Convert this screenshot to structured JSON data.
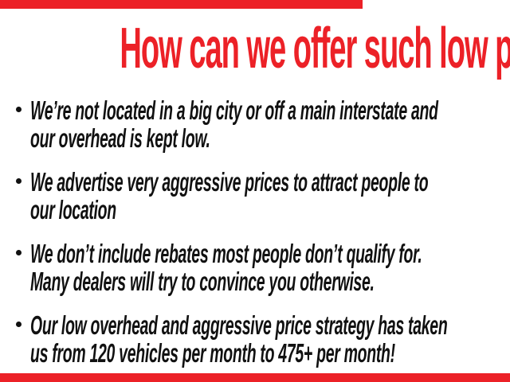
{
  "colors": {
    "accent_red": "#ec2127",
    "text_black": "#111111",
    "background": "#ffffff"
  },
  "heading": {
    "text": "How can we offer such low prices?"
  },
  "bullets": [
    {
      "line1": "We’re not located in a big city or off a main interstate and",
      "line2": "our overhead is kept low."
    },
    {
      "line1": "We advertise very aggressive prices to attract people to",
      "line2": "our location"
    },
    {
      "line1": "We don’t include rebates most people don’t qualify for.",
      "line2": "Many dealers will try to convince you otherwise."
    },
    {
      "line1": "Our low overhead and aggressive price strategy has taken",
      "line2": "us from 120 vehicles per month to 475+ per month!"
    }
  ],
  "decor": {
    "top_bar_color": "#ec2127",
    "bottom_bar_color": "#ec2127"
  }
}
